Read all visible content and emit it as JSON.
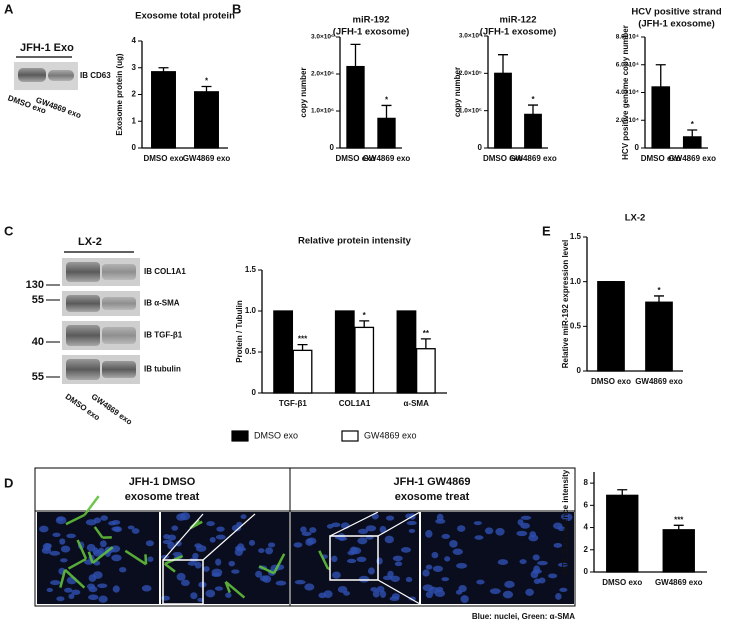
{
  "panel_labels": [
    "A",
    "B",
    "C",
    "D",
    "E"
  ],
  "blot_a": {
    "header": "JFH-1 Exo",
    "rows": [
      "IB CD63"
    ],
    "lanes": [
      "DMSO exo",
      "GW4869 exo"
    ]
  },
  "blot_c": {
    "header": "LX-2",
    "rows": [
      "IB COL1A1",
      "IB α-SMA",
      "IB TGF-β1",
      "IB tubulin"
    ],
    "markers": [
      "130",
      "55",
      "40",
      "55"
    ],
    "lanes": [
      "DMSO exo",
      "GW4869 exo"
    ]
  },
  "microscopy": {
    "headers": [
      [
        "JFH-1 DMSO",
        "exosome treat"
      ],
      [
        "JFH-1 GW4869",
        "exosome treat"
      ]
    ],
    "caption": "Blue: nuclei, Green: α-SMA"
  },
  "chart_data": [
    {
      "type": "bar",
      "title": "Exosome total protein",
      "y_label": "Exosome protein (ug)",
      "categories": [
        "DMSO exo",
        "GW4869 exo"
      ],
      "series": [
        {
          "color": "#000000",
          "values": [
            2.85,
            2.1
          ],
          "errors": [
            0.15,
            0.2
          ],
          "significance": [
            null,
            "*"
          ]
        }
      ],
      "ylim": [
        0,
        4
      ],
      "yticks": [
        0,
        1,
        2,
        3,
        4
      ]
    },
    {
      "type": "bar",
      "title": [
        "miR-192",
        "(JFH-1 exosome)"
      ],
      "y_label": "copy number",
      "categories": [
        "DMSO exo",
        "GW4869 exo"
      ],
      "series": [
        {
          "color": "#000000",
          "values": [
            2200000,
            800000
          ],
          "errors": [
            600000,
            350000
          ],
          "significance": [
            null,
            "*"
          ]
        }
      ],
      "ylim": [
        0,
        3000000
      ],
      "yticks": [
        0,
        {
          "value": 1000000,
          "label": "1.0×10⁶"
        },
        {
          "value": 2000000,
          "label": "2.0×10⁶"
        },
        {
          "value": 3000000,
          "label": "3.0×10⁶"
        }
      ]
    },
    {
      "type": "bar",
      "title": [
        "miR-122",
        "(JFH-1 exosome)"
      ],
      "y_label": "copy number",
      "categories": [
        "DMSO exo",
        "GW4869 exo"
      ],
      "series": [
        {
          "color": "#000000",
          "values": [
            200000,
            90000
          ],
          "errors": [
            50000,
            25000
          ],
          "significance": [
            null,
            "*"
          ]
        }
      ],
      "ylim": [
        0,
        300000
      ],
      "yticks": [
        0,
        {
          "value": 100000,
          "label": "1.0×10⁵"
        },
        {
          "value": 200000,
          "label": "2.0×10⁵"
        },
        {
          "value": 300000,
          "label": "3.0×10⁵"
        }
      ]
    },
    {
      "type": "bar",
      "title": [
        "HCV positive strand",
        "(JFH-1 exosome)"
      ],
      "y_label": "HCV positive genome copy number",
      "categories": [
        "DMSO exo",
        "GW4869 exo"
      ],
      "series": [
        {
          "color": "#000000",
          "values": [
            44000,
            8000
          ],
          "errors": [
            16000,
            5000
          ],
          "significance": [
            null,
            "*"
          ]
        }
      ],
      "ylim": [
        0,
        80000
      ],
      "yticks": [
        0,
        {
          "value": 20000,
          "label": "2.0×10⁴"
        },
        {
          "value": 40000,
          "label": "4.0×10⁴"
        },
        {
          "value": 60000,
          "label": "6.0×10⁴"
        },
        {
          "value": 80000,
          "label": "8.0×10⁴"
        }
      ]
    },
    {
      "type": "bar",
      "title": "Relative protein intensity",
      "y_label": "Protein / Tubulin",
      "categories": [
        "TGF-β1",
        "COL1A1",
        "α-SMA"
      ],
      "series": [
        {
          "name": "DMSO exo",
          "color": "#000000",
          "values": [
            1,
            1,
            1
          ]
        },
        {
          "name": "GW4869 exo",
          "color": "#ffffff",
          "values": [
            0.52,
            0.8,
            0.54
          ],
          "errors": [
            0.07,
            0.08,
            0.12
          ],
          "significance": [
            "***",
            "*",
            "**"
          ]
        }
      ],
      "ylim": [
        0,
        1.5
      ],
      "yticks": [
        0,
        0.5,
        {
          "value": 1,
          "label": "1.0"
        },
        1.5
      ],
      "legend": "bottom"
    },
    {
      "type": "bar",
      "title": "LX-2",
      "y_label": "Relative miR-192 expression level",
      "categories": [
        "DMSO exo",
        "GW4869 exo"
      ],
      "series": [
        {
          "color": "#000000",
          "values": [
            1,
            0.77
          ],
          "errors": [
            0,
            0.07
          ],
          "significance": [
            null,
            "*"
          ]
        }
      ],
      "ylim": [
        0,
        1.5
      ],
      "yticks": [
        0,
        0.5,
        {
          "value": 1,
          "label": "1.0"
        },
        1.5
      ]
    },
    {
      "type": "bar",
      "y_label": "FITC flourescence intensity",
      "categories": [
        "DMSO exo",
        "GW4869 exo"
      ],
      "series": [
        {
          "color": "#000000",
          "values": [
            6.9,
            3.8
          ],
          "errors": [
            0.5,
            0.4
          ],
          "significance": [
            null,
            "***"
          ]
        }
      ],
      "ylim": [
        0,
        9
      ],
      "yticks": [
        0,
        2,
        4,
        6,
        8
      ]
    }
  ]
}
